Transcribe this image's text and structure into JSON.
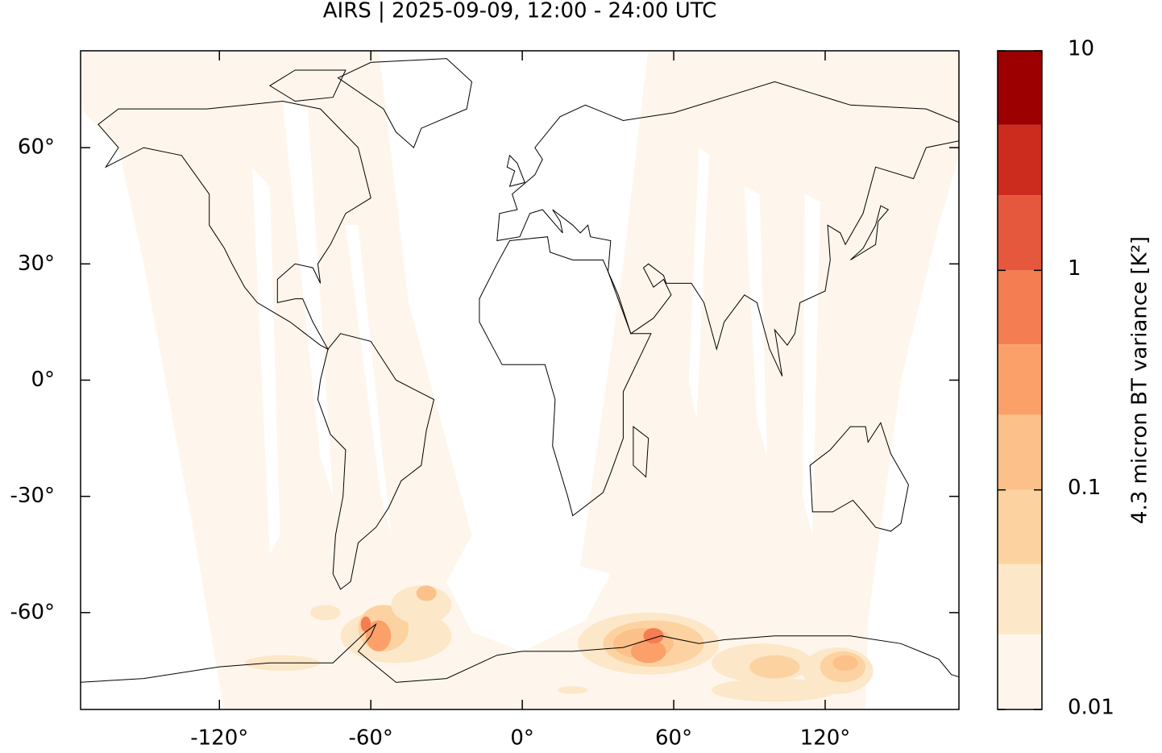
{
  "chart_data": {
    "type": "map",
    "title": "AIRS | 2025-09-09, 12:00 - 24:00 UTC",
    "xlim": [
      -175,
      173
    ],
    "ylim": [
      -85,
      85
    ],
    "xticks": [
      {
        "value": -120,
        "label": "-120°"
      },
      {
        "value": -60,
        "label": "-60°"
      },
      {
        "value": 0,
        "label": "0°"
      },
      {
        "value": 60,
        "label": "60°"
      },
      {
        "value": 120,
        "label": "120°"
      }
    ],
    "yticks": [
      {
        "value": 60,
        "label": "60°"
      },
      {
        "value": 30,
        "label": "30°"
      },
      {
        "value": 0,
        "label": "0°"
      },
      {
        "value": -30,
        "label": "-30°"
      },
      {
        "value": -60,
        "label": "-60°"
      }
    ],
    "colorbar": {
      "label": "4.3 micron BT variance [K²]",
      "scale": "log",
      "levels": [
        0.01,
        0.022,
        0.046,
        0.1,
        0.22,
        0.46,
        1,
        2.2,
        4.6,
        10
      ],
      "colors": [
        "#fef6ec",
        "#fde7c9",
        "#fcd3a0",
        "#fcc08a",
        "#fca06a",
        "#f57d52",
        "#e6583d",
        "#cc2c1e",
        "#9c0000"
      ],
      "ticks": [
        0.01,
        0.1,
        1,
        10
      ]
    }
  }
}
